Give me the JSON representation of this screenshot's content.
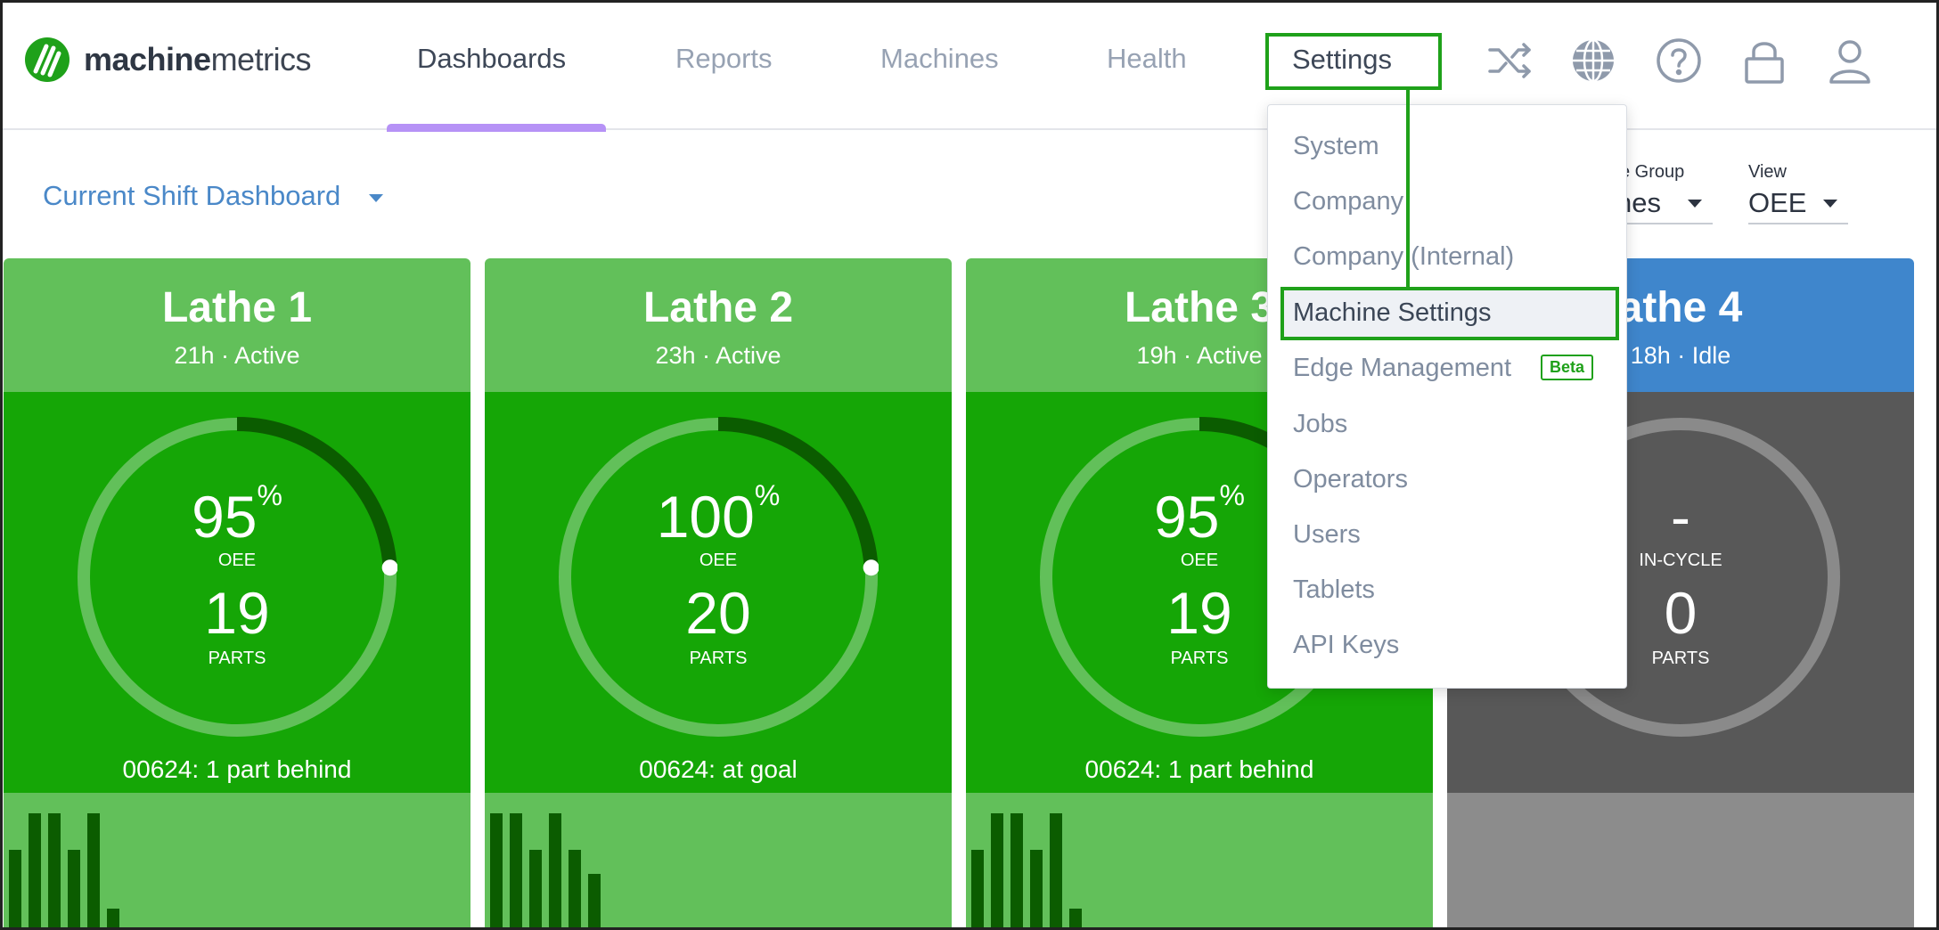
{
  "header": {
    "logo_bold": "machine",
    "logo_light": "metrics",
    "nav": [
      "Dashboards",
      "Reports",
      "Machines",
      "Health",
      "Settings"
    ],
    "active_nav": "Dashboards",
    "icons": [
      "shuffle-icon",
      "globe-icon",
      "help-icon",
      "lock-icon",
      "user-icon"
    ]
  },
  "toolbar": {
    "dashboard_title": "Current Shift Dashboard",
    "group_label": "e Group",
    "group_value": "nes",
    "view_label": "View",
    "view_value": "OEE"
  },
  "cards": [
    {
      "name": "Lathe 1",
      "sub": "21h · Active",
      "metric": "95",
      "unit": "%",
      "metric_label": "OEE",
      "parts": "19",
      "parts_label": "PARTS",
      "goal": "00624: 1 part behind",
      "progress": 0.24,
      "status": "active",
      "bars": [
        0.6,
        0.87,
        0.87,
        0.6,
        0.87,
        0.16
      ]
    },
    {
      "name": "Lathe 2",
      "sub": "23h · Active",
      "metric": "100",
      "unit": "%",
      "metric_label": "OEE",
      "parts": "20",
      "parts_label": "PARTS",
      "goal": "00624: at goal",
      "progress": 0.24,
      "status": "active",
      "bars": [
        0.87,
        0.87,
        0.6,
        0.87,
        0.6,
        0.42
      ]
    },
    {
      "name": "Lathe 3",
      "sub": "19h · Active",
      "metric": "95",
      "unit": "%",
      "metric_label": "OEE",
      "parts": "19",
      "parts_label": "PARTS",
      "goal": "00624: 1 part behind",
      "progress": 0.24,
      "status": "active",
      "bars": [
        0.6,
        0.87,
        0.87,
        0.6,
        0.87,
        0.16
      ]
    },
    {
      "name": "athe 4",
      "sub": "18h · Idle",
      "metric": "-",
      "unit": "",
      "metric_label": "IN-CYCLE",
      "parts": "0",
      "parts_label": "PARTS",
      "goal": "",
      "progress": 0,
      "status": "idle",
      "bars": []
    }
  ],
  "settings_menu": {
    "items": [
      "System",
      "Company",
      "Company (Internal)",
      "Machine Settings",
      "Edge Management",
      "Jobs",
      "Operators",
      "Users",
      "Tablets",
      "API Keys"
    ],
    "highlighted": "Machine Settings",
    "badge": "Beta"
  },
  "colors": {
    "accent_green": "#1fa11a",
    "active_head": "#62c05a",
    "active_body": "#15a606",
    "idle_head": "#3f86cc",
    "idle_body": "#585858",
    "idle_foot": "#8c8c8c",
    "nav_underline": "#b692f6"
  }
}
